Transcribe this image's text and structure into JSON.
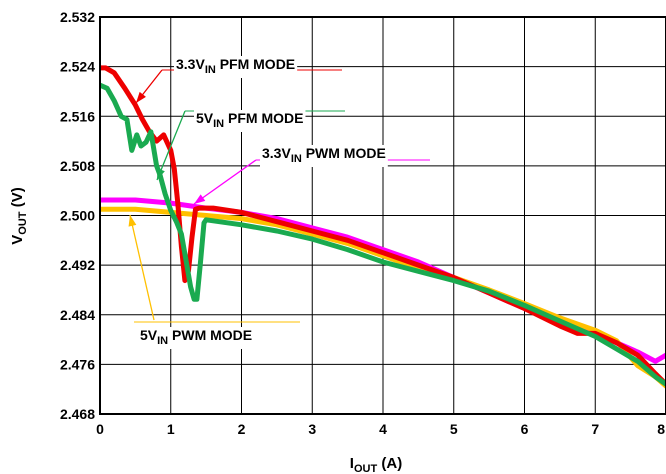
{
  "chart_data": {
    "type": "line",
    "x_axis": {
      "main": "I",
      "sub": "OUT",
      "unit": " (A)"
    },
    "y_axis": {
      "main": "V",
      "sub": "OUT",
      "unit": " (V)"
    },
    "xlim": [
      0,
      8
    ],
    "ylim": [
      2.468,
      2.532
    ],
    "x_ticks": [
      "0",
      "1",
      "2",
      "3",
      "4",
      "5",
      "6",
      "7",
      "8"
    ],
    "y_ticks": [
      "2.468",
      "2.476",
      "2.484",
      "2.492",
      "2.500",
      "2.508",
      "2.516",
      "2.524",
      "2.532"
    ],
    "grid": true,
    "series": [
      {
        "key": "v33_pwm",
        "label": {
          "pre": "3.3V",
          "sub": "IN",
          "post": " PWM MODE"
        },
        "color": "#ff00ff",
        "points": [
          [
            0,
            2.5025
          ],
          [
            0.5,
            2.5025
          ],
          [
            1,
            2.502
          ],
          [
            1.5,
            2.5012
          ],
          [
            2,
            2.5005
          ],
          [
            2.5,
            2.4995
          ],
          [
            3,
            2.498
          ],
          [
            3.5,
            2.4965
          ],
          [
            4,
            2.4945
          ],
          [
            4.5,
            2.4925
          ],
          [
            5,
            2.49
          ],
          [
            5.5,
            2.4875
          ],
          [
            6,
            2.485
          ],
          [
            6.5,
            2.4825
          ],
          [
            7,
            2.481
          ],
          [
            7.3,
            2.4795
          ],
          [
            7.6,
            2.478
          ],
          [
            7.85,
            2.4765
          ],
          [
            8,
            2.4775
          ]
        ]
      },
      {
        "key": "v5_pwm",
        "label": {
          "pre": "5V",
          "sub": "IN",
          "post": " PWM MODE"
        },
        "color": "#ffc000",
        "points": [
          [
            0,
            2.501
          ],
          [
            0.5,
            2.501
          ],
          [
            1,
            2.5005
          ],
          [
            1.5,
            2.5
          ],
          [
            2,
            2.4995
          ],
          [
            2.5,
            2.4985
          ],
          [
            3,
            2.497
          ],
          [
            3.5,
            2.4955
          ],
          [
            4,
            2.4935
          ],
          [
            4.5,
            2.4915
          ],
          [
            5,
            2.49
          ],
          [
            5.5,
            2.488
          ],
          [
            6,
            2.4858
          ],
          [
            6.5,
            2.4835
          ],
          [
            7,
            2.4815
          ],
          [
            7.3,
            2.4798
          ],
          [
            7.6,
            2.4758
          ],
          [
            7.85,
            2.474
          ],
          [
            8,
            2.4725
          ]
        ]
      },
      {
        "key": "v33_pfm",
        "label": {
          "pre": "3.3V",
          "sub": "IN",
          "post": " PFM MODE"
        },
        "color": "#ee0000",
        "points": [
          [
            0,
            2.5238
          ],
          [
            0.08,
            2.5238
          ],
          [
            0.2,
            2.523
          ],
          [
            0.35,
            2.5205
          ],
          [
            0.5,
            2.5178
          ],
          [
            0.6,
            2.5155
          ],
          [
            0.7,
            2.5135
          ],
          [
            0.8,
            2.512
          ],
          [
            0.9,
            2.513
          ],
          [
            1.0,
            2.5105
          ],
          [
            1.05,
            2.5075
          ],
          [
            1.1,
            2.502
          ],
          [
            1.15,
            2.495
          ],
          [
            1.2,
            2.4895
          ],
          [
            1.25,
            2.491
          ],
          [
            1.3,
            2.4965
          ],
          [
            1.35,
            2.501
          ],
          [
            1.4,
            2.5012
          ],
          [
            1.6,
            2.5012
          ],
          [
            2,
            2.5005
          ],
          [
            2.5,
            2.499
          ],
          [
            3,
            2.4975
          ],
          [
            3.5,
            2.496
          ],
          [
            4,
            2.494
          ],
          [
            4.5,
            2.492
          ],
          [
            5,
            2.49
          ],
          [
            5.5,
            2.4875
          ],
          [
            6,
            2.485
          ],
          [
            6.5,
            2.4822
          ],
          [
            6.75,
            2.481
          ],
          [
            7,
            2.481
          ],
          [
            7.3,
            2.4795
          ],
          [
            7.6,
            2.4775
          ],
          [
            7.85,
            2.4745
          ],
          [
            8,
            2.4728
          ]
        ]
      },
      {
        "key": "v5_pfm",
        "label": {
          "pre": "5V",
          "sub": "IN",
          "post": " PFM MODE"
        },
        "color": "#1aaa50",
        "points": [
          [
            0,
            2.521
          ],
          [
            0.1,
            2.5205
          ],
          [
            0.2,
            2.5185
          ],
          [
            0.3,
            2.516
          ],
          [
            0.38,
            2.5155
          ],
          [
            0.45,
            2.5105
          ],
          [
            0.52,
            2.513
          ],
          [
            0.58,
            2.5112
          ],
          [
            0.65,
            2.5118
          ],
          [
            0.72,
            2.5135
          ],
          [
            0.8,
            2.508
          ],
          [
            0.85,
            2.5065
          ],
          [
            0.92,
            2.5035
          ],
          [
            1.0,
            2.5008
          ],
          [
            1.08,
            2.499
          ],
          [
            1.15,
            2.497
          ],
          [
            1.22,
            2.4925
          ],
          [
            1.28,
            2.4885
          ],
          [
            1.33,
            2.4865
          ],
          [
            1.37,
            2.4865
          ],
          [
            1.42,
            2.4925
          ],
          [
            1.47,
            2.4988
          ],
          [
            1.5,
            2.4993
          ],
          [
            2,
            2.4985
          ],
          [
            2.5,
            2.4975
          ],
          [
            3,
            2.4962
          ],
          [
            3.5,
            2.4945
          ],
          [
            4,
            2.4925
          ],
          [
            4.5,
            2.491
          ],
          [
            5,
            2.4895
          ],
          [
            5.5,
            2.4878
          ],
          [
            6,
            2.4855
          ],
          [
            6.5,
            2.483
          ],
          [
            7,
            2.4805
          ],
          [
            7.3,
            2.4785
          ],
          [
            7.6,
            2.4765
          ],
          [
            7.85,
            2.474
          ],
          [
            8,
            2.4728
          ]
        ]
      }
    ],
    "annotations": [
      {
        "series": "v33_pfm",
        "pre": "3.3V",
        "sub": "IN",
        "post": " PFM MODE"
      },
      {
        "series": "v5_pfm",
        "pre": "5V",
        "sub": "IN",
        "post": " PFM MODE"
      },
      {
        "series": "v33_pwm",
        "pre": "3.3V",
        "sub": "IN",
        "post": " PWM MODE"
      },
      {
        "series": "v5_pwm",
        "pre": "5V",
        "sub": "IN",
        "post": " PWM MODE"
      }
    ]
  }
}
